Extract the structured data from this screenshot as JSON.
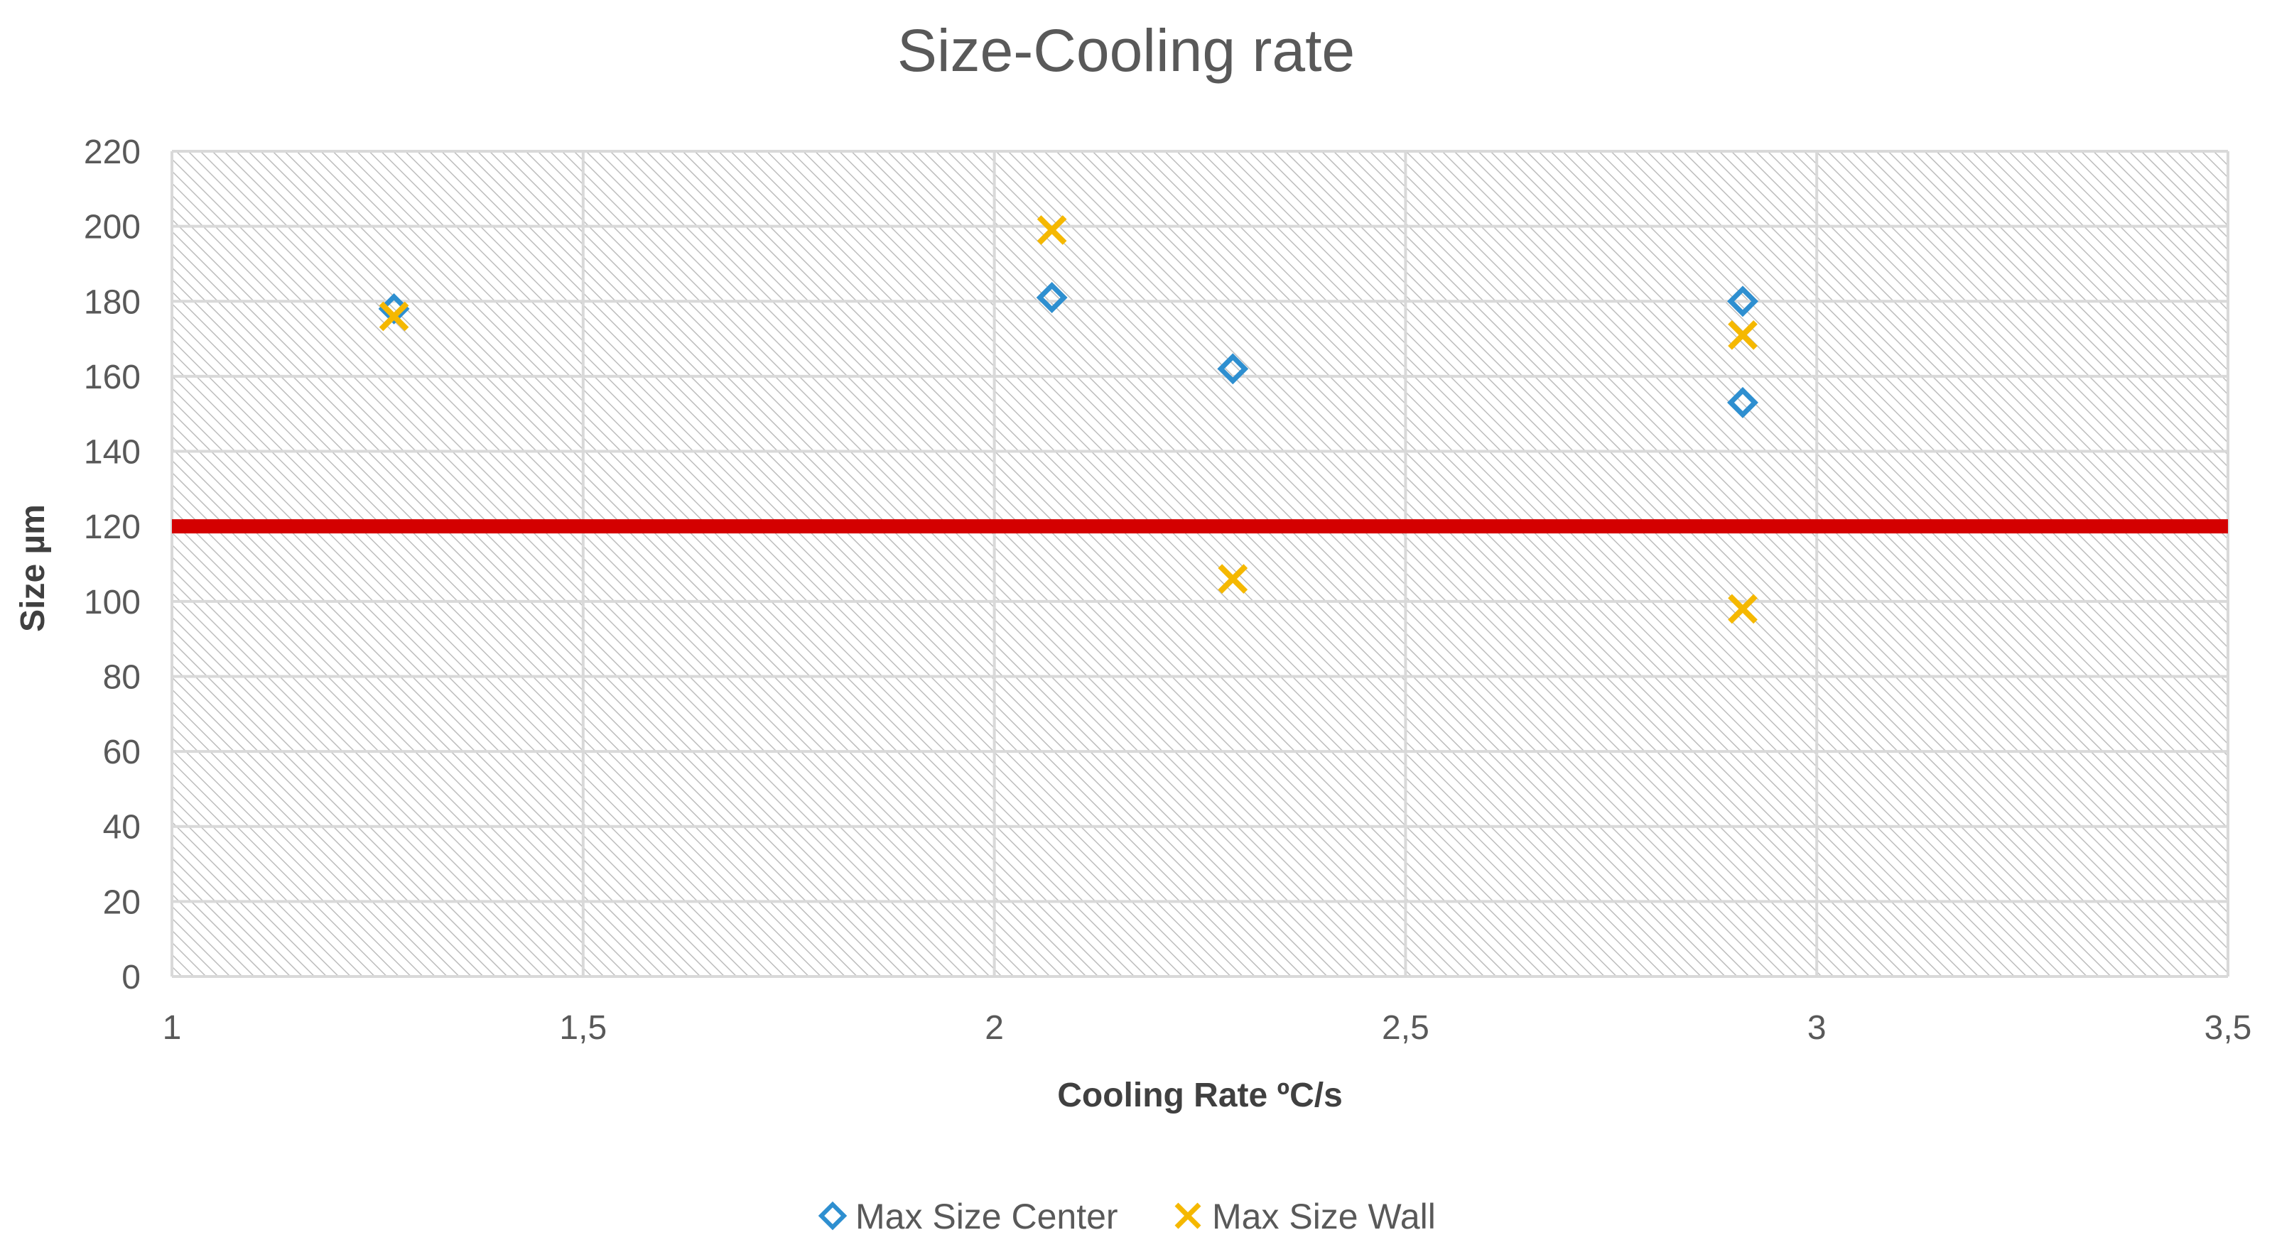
{
  "chart_data": {
    "type": "scatter",
    "title": "Size-Cooling rate",
    "xlabel": "Cooling Rate ºC/s",
    "ylabel": "Size µm",
    "xlim": [
      1,
      3.5
    ],
    "ylim": [
      0,
      220
    ],
    "xticks": [
      1,
      1.5,
      2,
      2.5,
      3,
      3.5
    ],
    "xtick_labels": [
      "1",
      "1,5",
      "2",
      "2,5",
      "3",
      "3,5"
    ],
    "yticks": [
      0,
      20,
      40,
      60,
      80,
      100,
      120,
      140,
      160,
      180,
      200,
      220
    ],
    "ytick_labels": [
      "0",
      "20",
      "40",
      "60",
      "80",
      "100",
      "120",
      "140",
      "160",
      "180",
      "200",
      "220"
    ],
    "grid": true,
    "legend_position": "bottom",
    "series": [
      {
        "name": "Max Size Center",
        "marker": "diamond",
        "color": "#2E8FD0",
        "x": [
          1.27,
          2.07,
          2.29,
          2.91,
          2.91
        ],
        "y": [
          178,
          181,
          162,
          180,
          153
        ]
      },
      {
        "name": "Max Size Wall",
        "marker": "x",
        "color": "#F5B800",
        "x": [
          1.27,
          2.07,
          2.29,
          2.91,
          2.91
        ],
        "y": [
          176,
          199,
          106,
          171,
          98
        ]
      }
    ],
    "reference_line": {
      "y": 120,
      "color": "#D40000"
    }
  }
}
